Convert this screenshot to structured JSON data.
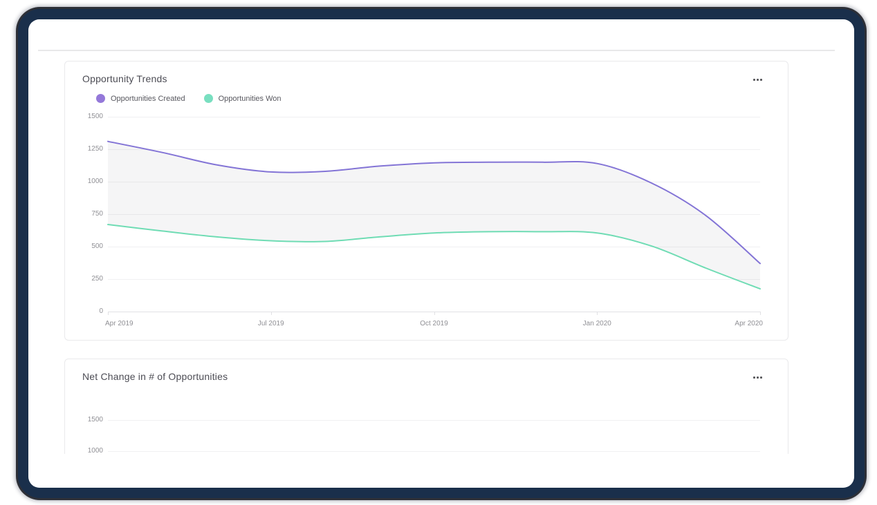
{
  "window": {
    "frame_color": "#1a2f4b",
    "background": "#ffffff"
  },
  "cards": [
    {
      "title": "Opportunity Trends",
      "menu_icon": "ellipsis-icon",
      "legend": [
        {
          "label": "Opportunities Created",
          "color": "#9478d9"
        },
        {
          "label": "Opportunities Won",
          "color": "#79dfc0"
        }
      ],
      "chart_data": {
        "type": "area",
        "x": [
          "Apr 2019",
          "May 2019",
          "Jun 2019",
          "Jul 2019",
          "Aug 2019",
          "Sep 2019",
          "Oct 2019",
          "Nov 2019",
          "Dec 2019",
          "Jan 2020",
          "Feb 2020",
          "Mar 2020",
          "Apr 2020"
        ],
        "x_tick_labels": [
          "Apr 2019",
          "Jul 2019",
          "Oct 2019",
          "Jan 2020",
          "Apr 2020"
        ],
        "y_ticks": [
          0,
          250,
          500,
          750,
          1000,
          1250,
          1500
        ],
        "ylim": [
          0,
          1500
        ],
        "grid": true,
        "legend_position": "top-left",
        "band_fill": "rgba(120,120,128,0.07)",
        "series": [
          {
            "name": "Opportunities Created",
            "color": "#8374d6",
            "values": [
              1310,
              1225,
              1130,
              1075,
              1080,
              1120,
              1145,
              1150,
              1150,
              1140,
              990,
              740,
              370
            ]
          },
          {
            "name": "Opportunities Won",
            "color": "#6fdcb4",
            "values": [
              670,
              620,
              575,
              545,
              540,
              575,
              605,
              615,
              615,
              605,
              505,
              335,
              175
            ]
          }
        ]
      }
    },
    {
      "title": "Net Change in # of Opportunities",
      "menu_icon": "ellipsis-icon",
      "chart_data": {
        "type": "line",
        "ylim_visible_ticks": [
          1500,
          1000
        ],
        "grid": true
      }
    }
  ]
}
